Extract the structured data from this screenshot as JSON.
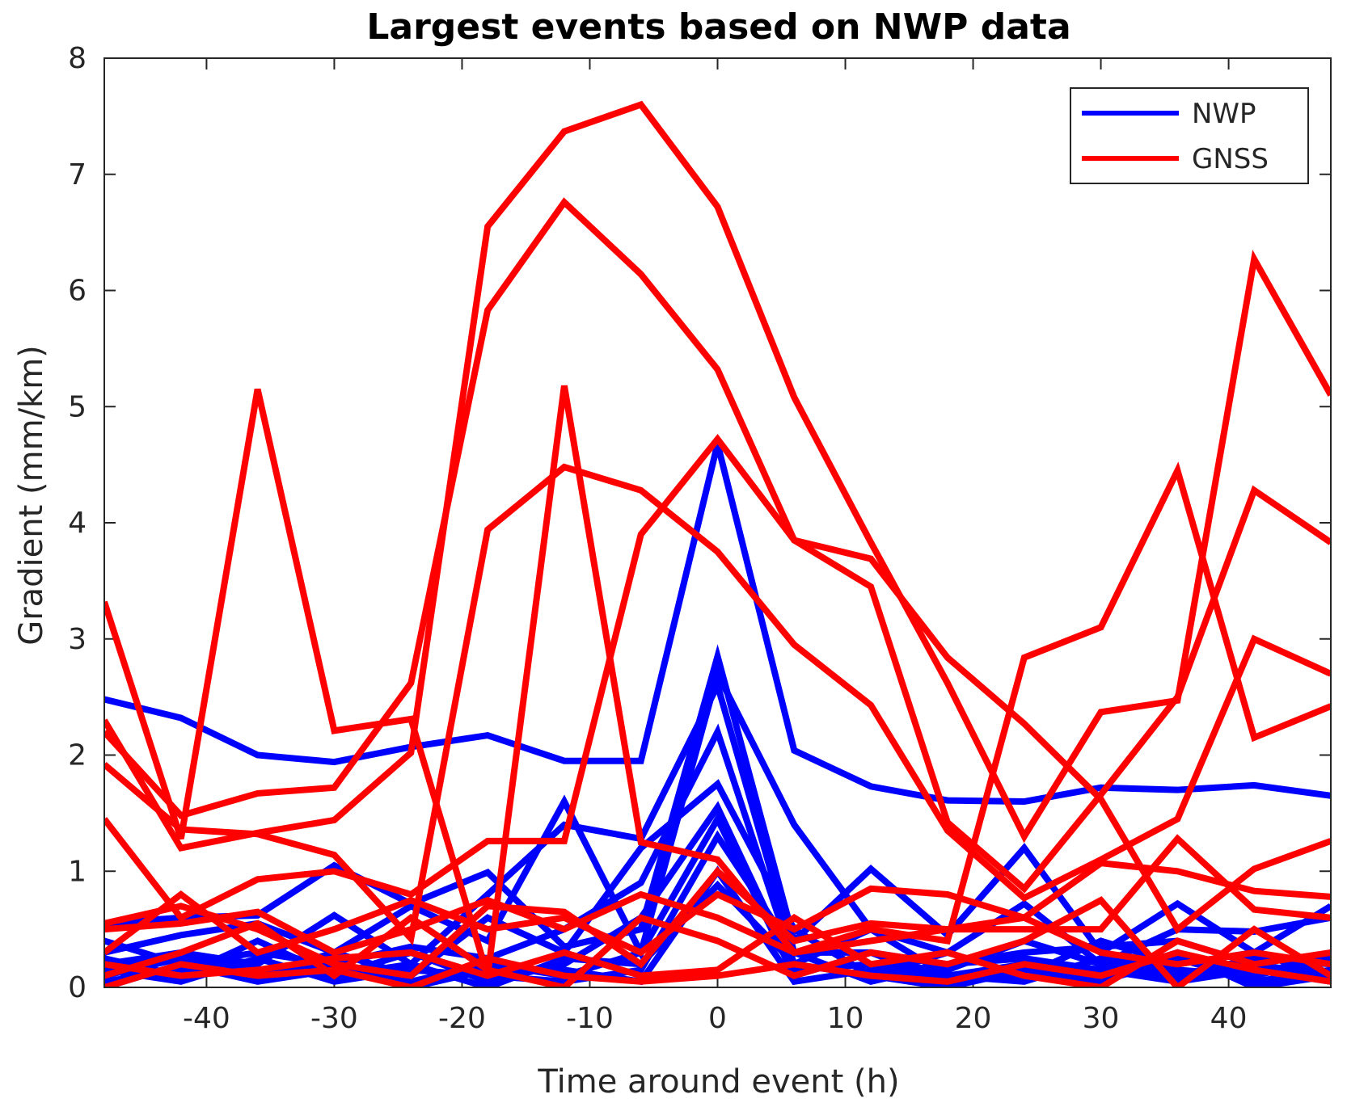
{
  "colors": {
    "nwp": "#0000ff",
    "gnss": "#ff0000",
    "axis": "#262626",
    "background": "#ffffff"
  },
  "chart_data": {
    "type": "line",
    "title": "Largest events based on NWP data",
    "xlabel": "Time around event (h)",
    "ylabel": "Gradient (mm/km)",
    "xlim": [
      -48,
      48
    ],
    "ylim": [
      0,
      8
    ],
    "x": [
      -48,
      -42,
      -36,
      -30,
      -24,
      -18,
      -12,
      -6,
      0,
      6,
      12,
      18,
      24,
      30,
      36,
      42,
      48
    ],
    "xticks": [
      -40,
      -30,
      -20,
      -10,
      0,
      10,
      20,
      30,
      40
    ],
    "xtick_labels": [
      "-40",
      "-30",
      "-20",
      "-10",
      "0",
      "10",
      "20",
      "30",
      "40"
    ],
    "yticks": [
      0,
      1,
      2,
      3,
      4,
      5,
      6,
      7,
      8
    ],
    "ytick_labels": [
      "0",
      "1",
      "2",
      "3",
      "4",
      "5",
      "6",
      "7",
      "8"
    ],
    "legend": {
      "location": "top-right",
      "entries": [
        "NWP",
        "GNSS"
      ]
    },
    "series": [
      {
        "name": "NWP",
        "values": [
          2.48,
          2.32,
          2.0,
          1.94,
          2.07,
          2.17,
          1.95,
          1.95,
          4.68,
          2.04,
          1.73,
          1.61,
          1.6,
          1.72,
          1.7,
          1.74,
          1.65
        ]
      },
      {
        "name": "NWP",
        "values": [
          0.55,
          0.6,
          0.62,
          1.05,
          0.72,
          0.99,
          0.35,
          0.5,
          2.85,
          0.4,
          1.02,
          0.45,
          1.2,
          0.3,
          0.72,
          0.3,
          0.7
        ]
      },
      {
        "name": "NWP",
        "values": [
          0.3,
          0.45,
          0.55,
          0.3,
          0.7,
          0.4,
          1.6,
          0.3,
          2.7,
          1.4,
          0.5,
          0.3,
          0.72,
          0.2,
          0.5,
          0.48,
          0.6
        ]
      },
      {
        "name": "NWP",
        "values": [
          0.2,
          0.3,
          0.2,
          0.62,
          0.2,
          0.8,
          1.4,
          1.28,
          2.6,
          0.3,
          0.3,
          0.2,
          0.3,
          0.35,
          0.4,
          0.2,
          0.1
        ]
      },
      {
        "name": "NWP",
        "values": [
          0.4,
          0.2,
          0.3,
          0.2,
          0.35,
          0.25,
          0.5,
          0.9,
          2.2,
          0.2,
          0.5,
          0.1,
          0.2,
          0.1,
          0.3,
          0.1,
          0.3
        ]
      },
      {
        "name": "NWP",
        "values": [
          0.1,
          0.3,
          0.1,
          0.3,
          0.1,
          0.6,
          0.3,
          1.2,
          1.75,
          0.5,
          0.1,
          0.3,
          0.1,
          0.4,
          0.2,
          0.3,
          0.1
        ]
      },
      {
        "name": "NWP",
        "values": [
          0.25,
          0.1,
          0.4,
          0.1,
          0.3,
          0.05,
          0.2,
          0.6,
          1.55,
          0.15,
          0.2,
          0.15,
          0.4,
          0.2,
          0.1,
          0.25,
          0.2
        ]
      },
      {
        "name": "NWP",
        "values": [
          0.0,
          0.2,
          0.05,
          0.15,
          0.05,
          0.2,
          0.1,
          0.3,
          1.45,
          0.1,
          0.3,
          0.05,
          0.1,
          0.05,
          0.25,
          0.05,
          0.15
        ]
      },
      {
        "name": "NWP",
        "values": [
          0.15,
          0.05,
          0.25,
          0.05,
          0.15,
          0.1,
          0.05,
          0.15,
          1.3,
          0.3,
          0.05,
          0.2,
          0.25,
          0.15,
          0.05,
          0.15,
          0.05
        ]
      },
      {
        "name": "NWP",
        "values": [
          0.05,
          0.15,
          0.1,
          0.2,
          0.0,
          0.15,
          0.15,
          0.05,
          1.0,
          0.05,
          0.15,
          0.1,
          0.05,
          0.25,
          0.15,
          0.1,
          0.25
        ]
      },
      {
        "name": "NWP",
        "values": [
          0.1,
          0.25,
          0.15,
          0.1,
          0.2,
          0.0,
          0.25,
          0.2,
          0.88,
          0.2,
          0.1,
          0.0,
          0.15,
          0.1,
          0.3,
          0.0,
          0.1
        ]
      },
      {
        "name": "GNSS",
        "values": [
          3.32,
          1.28,
          5.15,
          2.21,
          2.31,
          0.1,
          5.18,
          1.25,
          1.1,
          0.3,
          0.4,
          0.5,
          0.6,
          0.3,
          0.2,
          0.3,
          0.2
        ]
      },
      {
        "name": "GNSS",
        "values": [
          2.3,
          1.2,
          1.33,
          1.44,
          2.02,
          6.55,
          7.37,
          7.6,
          6.72,
          5.08,
          3.83,
          2.62,
          1.3,
          2.37,
          2.47,
          6.27,
          5.1
        ]
      },
      {
        "name": "GNSS",
        "values": [
          2.2,
          1.48,
          1.67,
          1.72,
          2.62,
          5.83,
          6.76,
          6.14,
          5.32,
          3.85,
          3.45,
          1.42,
          0.85,
          1.66,
          2.5,
          4.28,
          3.83
        ]
      },
      {
        "name": "GNSS",
        "values": [
          1.92,
          1.36,
          1.32,
          1.14,
          0.42,
          3.94,
          4.48,
          4.28,
          3.75,
          2.95,
          2.43,
          1.35,
          0.77,
          1.1,
          1.45,
          3.0,
          2.7
        ]
      },
      {
        "name": "GNSS",
        "values": [
          1.45,
          0.6,
          0.93,
          1.0,
          0.8,
          1.26,
          1.26,
          3.9,
          4.72,
          3.85,
          3.69,
          2.84,
          2.27,
          1.62,
          0.5,
          1.02,
          1.26
        ]
      },
      {
        "name": "GNSS",
        "values": [
          0.5,
          0.55,
          0.65,
          0.3,
          0.5,
          0.75,
          0.5,
          0.8,
          0.6,
          0.3,
          0.5,
          0.4,
          2.84,
          3.1,
          4.45,
          2.15,
          2.42
        ]
      },
      {
        "name": "GNSS",
        "values": [
          0.3,
          0.8,
          0.3,
          0.5,
          0.75,
          0.5,
          0.6,
          0.3,
          0.8,
          0.5,
          0.85,
          0.8,
          0.6,
          1.07,
          1.0,
          0.83,
          0.78
        ]
      },
      {
        "name": "GNSS",
        "values": [
          0.55,
          0.7,
          0.5,
          0.2,
          0.1,
          0.7,
          0.65,
          0.2,
          1.0,
          0.4,
          0.55,
          0.5,
          0.5,
          0.5,
          1.28,
          0.67,
          0.6
        ]
      },
      {
        "name": "GNSS",
        "values": [
          0.1,
          0.3,
          0.55,
          0.1,
          0.6,
          0.15,
          0.0,
          0.6,
          0.4,
          0.1,
          0.3,
          0.2,
          0.4,
          0.75,
          0.0,
          0.5,
          0.1
        ]
      },
      {
        "name": "GNSS",
        "values": [
          0.2,
          0.1,
          0.15,
          0.25,
          0.3,
          0.1,
          0.3,
          0.1,
          0.15,
          0.6,
          0.2,
          0.3,
          0.1,
          0.0,
          0.4,
          0.2,
          0.3
        ]
      },
      {
        "name": "GNSS",
        "values": [
          0.0,
          0.2,
          0.1,
          0.15,
          0.0,
          0.25,
          0.1,
          0.05,
          0.1,
          0.2,
          0.1,
          0.05,
          0.2,
          0.1,
          0.3,
          0.15,
          0.05
        ]
      }
    ]
  }
}
